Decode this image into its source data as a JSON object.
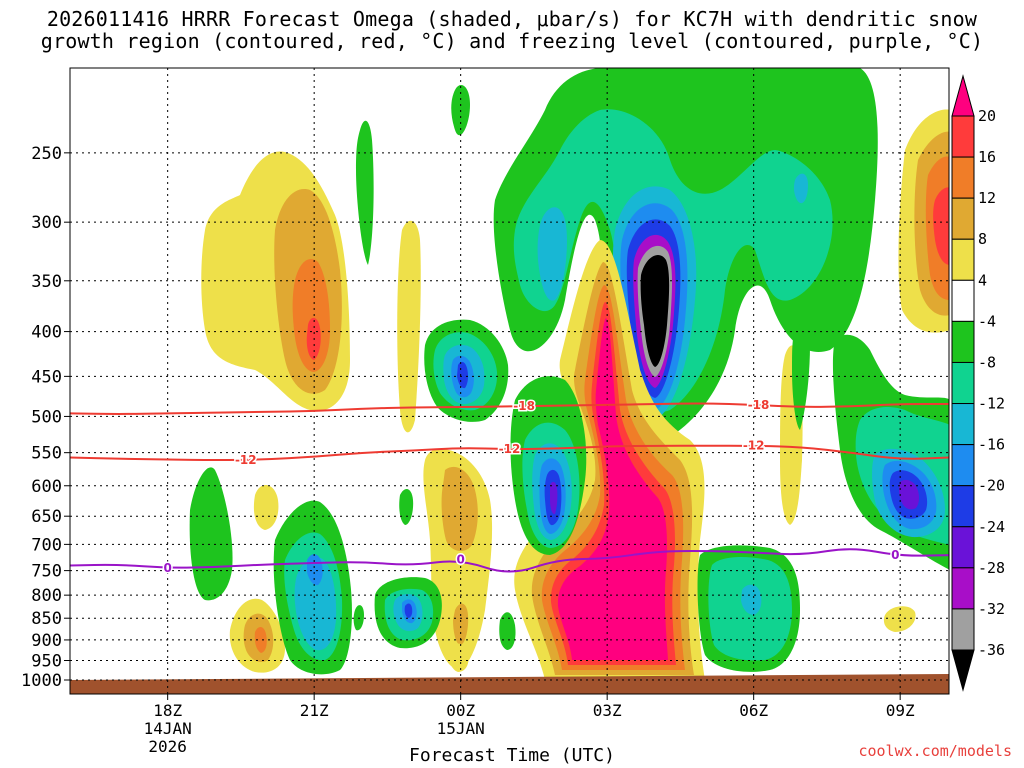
{
  "title_line1": "2026011416 HRRR Forecast Omega (shaded, μbar/s) for KC7H with dendritic snow",
  "title_line2": "growth region (contoured, red, °C) and freezing level (contoured, purple, °C)",
  "credit": "coolwx.com/models",
  "chart_data": {
    "type": "heatmap",
    "xlabel": "Forecast Time (UTC)",
    "ylabel": "",
    "x_ticks": [
      {
        "hour": 18,
        "lines": [
          "18Z",
          "14JAN",
          "2026"
        ]
      },
      {
        "hour": 21,
        "lines": [
          "21Z"
        ]
      },
      {
        "hour": 24,
        "lines": [
          "00Z",
          "15JAN"
        ]
      },
      {
        "hour": 27,
        "lines": [
          "03Z"
        ]
      },
      {
        "hour": 30,
        "lines": [
          "06Z"
        ]
      },
      {
        "hour": 33,
        "lines": [
          "09Z"
        ]
      }
    ],
    "xlim": [
      16,
      34
    ],
    "y_scale": "log",
    "ylim": [
      1000,
      200
    ],
    "y_ticks": [
      250,
      300,
      350,
      400,
      450,
      500,
      550,
      600,
      650,
      700,
      750,
      800,
      850,
      900,
      950,
      1000
    ],
    "grid": true,
    "colorbar": {
      "levels": [
        20,
        16,
        12,
        8,
        4,
        -4,
        -8,
        -12,
        -16,
        -20,
        -24,
        -28,
        -32,
        -36
      ],
      "colors": [
        "#ff007f",
        "#ff3b3b",
        "#f07d28",
        "#e0a932",
        "#eee04a",
        "#ffffff",
        "#1ec41e",
        "#10d390",
        "#18b7d4",
        "#1e8cf0",
        "#1e3ce6",
        "#6a12d8",
        "#a80ec8",
        "#a0a0a0",
        "#000000"
      ]
    },
    "dgz_contours": [
      {
        "value": -12,
        "label": "-12",
        "points": [
          [
            16,
            557
          ],
          [
            17,
            559
          ],
          [
            18,
            560
          ],
          [
            19,
            561
          ],
          [
            20,
            560
          ],
          [
            21,
            556
          ],
          [
            22,
            550
          ],
          [
            23,
            547
          ],
          [
            24,
            543
          ],
          [
            25,
            545
          ],
          [
            26,
            544
          ],
          [
            27,
            541
          ],
          [
            28,
            540
          ],
          [
            29,
            540
          ],
          [
            30,
            540
          ],
          [
            31,
            542
          ],
          [
            32,
            550
          ],
          [
            33,
            560
          ],
          [
            34,
            557
          ]
        ]
      },
      {
        "value": -18,
        "label": "-18",
        "points": [
          [
            16,
            496
          ],
          [
            17,
            497
          ],
          [
            18,
            496
          ],
          [
            19,
            495
          ],
          [
            20,
            494
          ],
          [
            21,
            493
          ],
          [
            22,
            490
          ],
          [
            23,
            488
          ],
          [
            24,
            488
          ],
          [
            25,
            487
          ],
          [
            26,
            486
          ],
          [
            27,
            485
          ],
          [
            28,
            484
          ],
          [
            29,
            483
          ],
          [
            30,
            485
          ],
          [
            31,
            488
          ],
          [
            32,
            487
          ],
          [
            33,
            484
          ],
          [
            34,
            484
          ]
        ]
      }
    ],
    "freezing_level": {
      "value": 0,
      "label": "0",
      "points": [
        [
          16,
          740
        ],
        [
          17,
          738
        ],
        [
          18,
          745
        ],
        [
          19,
          743
        ],
        [
          20,
          738
        ],
        [
          21,
          735
        ],
        [
          22,
          733
        ],
        [
          23,
          740
        ],
        [
          24,
          728
        ],
        [
          25,
          760
        ],
        [
          26,
          728
        ],
        [
          27,
          727
        ],
        [
          28,
          713
        ],
        [
          29,
          712
        ],
        [
          30,
          715
        ],
        [
          31,
          720
        ],
        [
          32,
          705
        ],
        [
          33,
          722
        ],
        [
          34,
          720
        ]
      ]
    },
    "contour_labels": {
      "dgz_upper": "-18",
      "dgz_lower": "-12",
      "freezing": "0"
    }
  }
}
